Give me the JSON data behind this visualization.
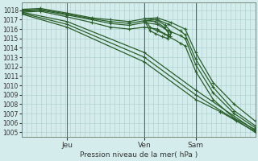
{
  "background_color": "#d4ecec",
  "grid_color": "#aacccc",
  "line_color": "#2a5e2a",
  "marker_color": "#2a5e2a",
  "xlabel_text": "Pression niveau de la mer( hPa )",
  "x_tick_labels": [
    "Jeu",
    "Ven",
    "Sam"
  ],
  "x_tick_positions": [
    0.195,
    0.525,
    0.745
  ],
  "ylim": [
    1004.5,
    1018.8
  ],
  "xlim": [
    0.0,
    1.0
  ],
  "yticks": [
    1005,
    1006,
    1007,
    1008,
    1009,
    1010,
    1011,
    1012,
    1013,
    1014,
    1015,
    1016,
    1017,
    1018
  ],
  "lines": [
    {
      "x": [
        0.0,
        0.195,
        0.525,
        0.745,
        1.0
      ],
      "y": [
        1017.7,
        1016.5,
        1013.0,
        1009.0,
        1005.0
      ]
    },
    {
      "x": [
        0.0,
        0.195,
        0.525,
        0.745,
        1.0
      ],
      "y": [
        1017.8,
        1016.8,
        1013.5,
        1009.5,
        1005.2
      ]
    },
    {
      "x": [
        0.0,
        0.08,
        0.195,
        0.3,
        0.38,
        0.46,
        0.525,
        0.58,
        0.63,
        0.68,
        0.7,
        0.745,
        0.82,
        0.91,
        1.0
      ],
      "y": [
        1017.8,
        1017.9,
        1017.3,
        1016.7,
        1016.2,
        1016.0,
        1016.2,
        1016.0,
        1015.2,
        1014.5,
        1014.2,
        1011.5,
        1008.5,
        1006.5,
        1005.3
      ]
    },
    {
      "x": [
        0.0,
        0.08,
        0.195,
        0.3,
        0.38,
        0.46,
        0.525,
        0.58,
        0.63,
        0.68,
        0.7,
        0.745,
        0.82,
        0.91,
        1.0
      ],
      "y": [
        1017.9,
        1018.0,
        1017.5,
        1017.0,
        1016.6,
        1016.4,
        1016.7,
        1016.5,
        1015.8,
        1015.3,
        1015.0,
        1012.2,
        1009.2,
        1007.0,
        1005.5
      ]
    },
    {
      "x": [
        0.0,
        0.08,
        0.195,
        0.3,
        0.38,
        0.46,
        0.525,
        0.575,
        0.61,
        0.63,
        0.625,
        0.6,
        0.575,
        0.55,
        0.525,
        0.58,
        0.63,
        0.68,
        0.7,
        0.745,
        0.82,
        0.91,
        1.0
      ],
      "y": [
        1018.0,
        1018.1,
        1017.6,
        1017.1,
        1016.8,
        1016.6,
        1016.9,
        1016.8,
        1016.2,
        1015.5,
        1015.0,
        1015.2,
        1015.5,
        1015.8,
        1016.9,
        1017.0,
        1016.5,
        1015.8,
        1015.4,
        1012.8,
        1009.8,
        1007.3,
        1005.7
      ]
    },
    {
      "x": [
        0.0,
        0.08,
        0.195,
        0.3,
        0.38,
        0.46,
        0.525,
        0.575,
        0.615,
        0.64,
        0.635,
        0.61,
        0.58,
        0.55,
        0.525,
        0.58,
        0.64,
        0.7,
        0.745,
        0.82,
        0.91,
        1.0
      ],
      "y": [
        1018.1,
        1018.2,
        1017.7,
        1017.2,
        1017.0,
        1016.8,
        1017.1,
        1017.0,
        1016.4,
        1015.7,
        1015.2,
        1015.5,
        1015.8,
        1016.2,
        1017.1,
        1017.2,
        1016.7,
        1016.0,
        1013.5,
        1010.3,
        1008.0,
        1006.2
      ]
    },
    {
      "x": [
        0.0,
        0.195,
        0.525,
        0.745,
        0.85,
        0.92,
        1.0
      ],
      "y": [
        1017.6,
        1016.2,
        1012.5,
        1008.5,
        1007.2,
        1006.2,
        1005.1
      ]
    }
  ],
  "vline_positions": [
    0.195,
    0.525,
    0.745
  ],
  "figsize": [
    3.2,
    2.0
  ],
  "dpi": 100
}
